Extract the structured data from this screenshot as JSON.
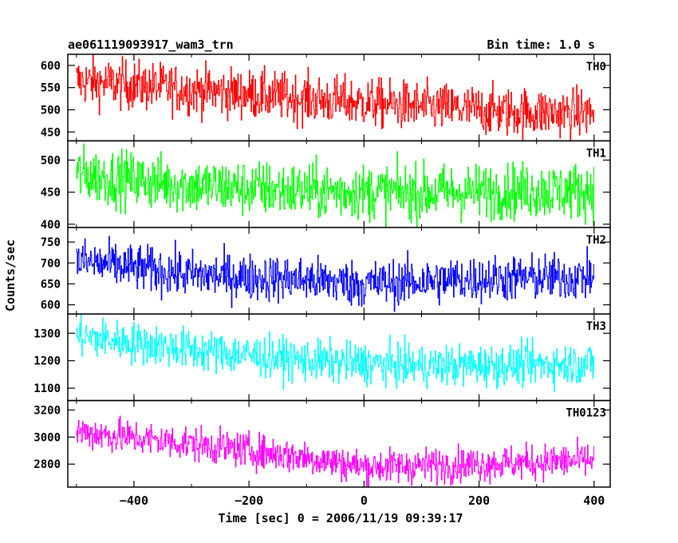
{
  "header": {
    "title": "ae061119093917_wam3_trn",
    "bin_time": "Bin time: 1.0 s"
  },
  "chart_data": {
    "type": "line",
    "title": "ae061119093917_wam3_trn",
    "subtitle": "Bin time: 1.0 s",
    "xlabel": "Time [sec] 0 = 2006/11/19 09:39:17",
    "ylabel": "Counts/sec",
    "xlim": [
      -515,
      428
    ],
    "x_ticks": [
      -400,
      -200,
      0,
      200,
      400
    ],
    "x_tick_labels": [
      "−400",
      "−200",
      "0",
      "200",
      "400"
    ],
    "x_start": -500,
    "x_end": 400,
    "x_step": 1,
    "grid": false,
    "panels": [
      {
        "name": "TH0",
        "color": "#ff0000",
        "ylim": [
          430,
          625
        ],
        "y_ticks": [
          450,
          500,
          550,
          600
        ],
        "trend": [
          [
            -500,
            565
          ],
          [
            -300,
            545
          ],
          [
            -100,
            525
          ],
          [
            100,
            507
          ],
          [
            250,
            495
          ],
          [
            400,
            493
          ]
        ],
        "noise": 28
      },
      {
        "name": "TH1",
        "color": "#00ff00",
        "ylim": [
          395,
          530
        ],
        "y_ticks": [
          400,
          450,
          500
        ],
        "trend": [
          [
            -500,
            478
          ],
          [
            -300,
            460
          ],
          [
            -100,
            452
          ],
          [
            100,
            449
          ],
          [
            250,
            452
          ],
          [
            400,
            452
          ]
        ],
        "noise": 22
      },
      {
        "name": "TH2",
        "color": "#0000ff",
        "ylim": [
          578,
          785
        ],
        "y_ticks": [
          600,
          650,
          700,
          750
        ],
        "trend": [
          [
            -500,
            705
          ],
          [
            -300,
            672
          ],
          [
            -100,
            660
          ],
          [
            0,
            650
          ],
          [
            200,
            662
          ],
          [
            400,
            667
          ]
        ],
        "noise": 28
      },
      {
        "name": "TH3",
        "color": "#00ffff",
        "ylim": [
          1055,
          1370
        ],
        "y_ticks": [
          1100,
          1200,
          1300
        ],
        "trend": [
          [
            -500,
            1290
          ],
          [
            -300,
            1240
          ],
          [
            -100,
            1200
          ],
          [
            100,
            1180
          ],
          [
            250,
            1185
          ],
          [
            400,
            1190
          ]
        ],
        "noise": 38
      },
      {
        "name": "TH0123",
        "color": "#ff00ff",
        "ylim": [
          2630,
          3270
        ],
        "y_ticks": [
          2800,
          3000,
          3200
        ],
        "trend": [
          [
            -500,
            3040
          ],
          [
            -300,
            2950
          ],
          [
            -100,
            2850
          ],
          [
            0,
            2780
          ],
          [
            200,
            2800
          ],
          [
            400,
            2830
          ]
        ],
        "noise": 65
      }
    ]
  }
}
